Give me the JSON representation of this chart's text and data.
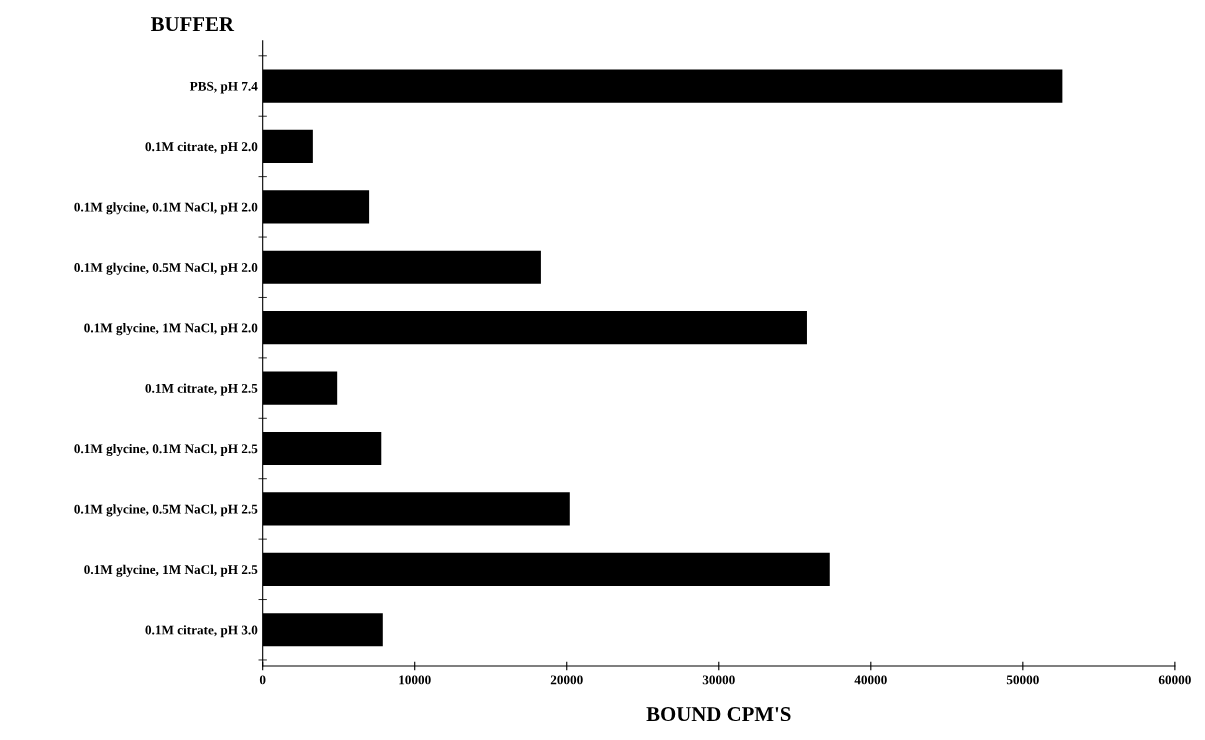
{
  "chart_data": {
    "type": "bar",
    "orientation": "horizontal",
    "ylabel": "BUFFER",
    "xlabel": "BOUND CPM'S",
    "categories": [
      "PBS, pH 7.4",
      "0.1M citrate, pH 2.0",
      "0.1M glycine, 0.1M NaCl, pH 2.0",
      "0.1M glycine, 0.5M NaCl, pH 2.0",
      "0.1M glycine, 1M NaCl, pH 2.0",
      "0.1M citrate, pH 2.5",
      "0.1M glycine, 0.1M NaCl, pH 2.5",
      "0.1M glycine, 0.5M NaCl, pH 2.5",
      "0.1M glycine, 1M NaCl, pH 2.5",
      "0.1M citrate, pH 3.0"
    ],
    "values": [
      52600,
      3300,
      7000,
      18300,
      35800,
      4900,
      7800,
      20200,
      37300,
      7900
    ],
    "color": "#000000",
    "xlim": [
      0,
      60000
    ],
    "xticks": [
      0,
      10000,
      20000,
      30000,
      40000,
      50000,
      60000
    ],
    "grid": false,
    "legend": false
  }
}
